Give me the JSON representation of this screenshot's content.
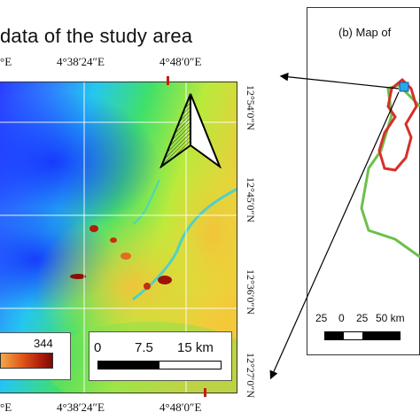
{
  "main_map": {
    "title": "data of the study area",
    "top_lon_labels": [
      "°E",
      "4°38′24″E",
      "4°48′0″E"
    ],
    "bottom_lon_labels": [
      "°E",
      "4°38′24″E",
      "4°48′0″E"
    ],
    "right_lat_labels": [
      "12°54′0″N",
      "12°45′0″N",
      "12°36′0″N",
      "12°27′0″N"
    ],
    "legend_max": "344",
    "scale_labels": [
      "0",
      "7.5",
      "15 km"
    ],
    "north_arrow": "north-arrow-icon"
  },
  "inset_map": {
    "title": "(b) Map of",
    "scale_labels": [
      "25",
      "0",
      "25",
      "50 km"
    ],
    "boundary_colors": {
      "outer": "#6cc04a",
      "inner": "#d6302a"
    }
  },
  "colors": {
    "low": "#1f3cff",
    "mid": "#3fe06a",
    "high": "#f6e23a",
    "peak": "#8a0e04"
  }
}
